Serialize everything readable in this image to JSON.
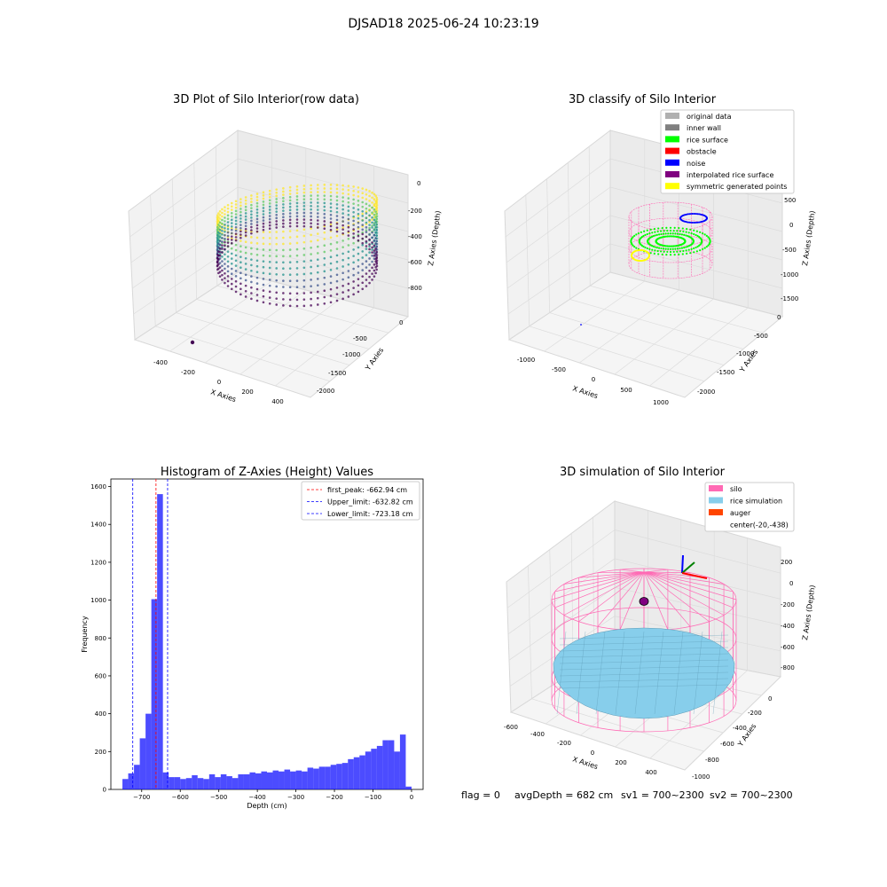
{
  "figure": {
    "suptitle": "DJSAD18 2025-06-24 10:23:19",
    "footer": {
      "flag": "flag = 0",
      "avg_depth": "avgDepth = 682 cm",
      "sv1": "sv1 = 700~2300",
      "sv2": "sv2 = 700~2300"
    }
  },
  "plot1": {
    "title": "3D Plot of Silo Interior(row data)",
    "xlabel": "X Axies",
    "ylabel": "Y Axies",
    "zlabel": "Z Axies (Depth)",
    "xticks": [
      "-400",
      "-200",
      "0",
      "200",
      "400"
    ],
    "yticks": [
      "0",
      "-500",
      "-1000",
      "-1500",
      "-2000"
    ],
    "zticks": [
      "0",
      "-200",
      "-400",
      "-600",
      "-800"
    ]
  },
  "plot2": {
    "title": "3D classify of Silo Interior",
    "xlabel": "X Axies",
    "ylabel": "Y Axies",
    "zlabel": "Z Axies (Depth)",
    "xticks": [
      "-1000",
      "-500",
      "0",
      "500",
      "1000"
    ],
    "yticks": [
      "0",
      "-500",
      "-1000",
      "-1500",
      "-2000"
    ],
    "zticks": [
      "500",
      "0",
      "-500",
      "-1000",
      "-1500"
    ],
    "legend": [
      {
        "label": "original data",
        "color": "#b0b0b0"
      },
      {
        "label": "inner wall",
        "color": "#808080"
      },
      {
        "label": "rice surface",
        "color": "#00ff00"
      },
      {
        "label": "obstacle",
        "color": "#ff0000"
      },
      {
        "label": "noise",
        "color": "#0000ff"
      },
      {
        "label": "interpolated rice surface",
        "color": "#800080"
      },
      {
        "label": "symmetric generated points",
        "color": "#ffff00"
      }
    ]
  },
  "plot4": {
    "title": "3D simulation of Silo Interior",
    "xlabel": "X Axies",
    "ylabel": "Y Axies",
    "zlabel": "Z Axies (Depth)",
    "xticks": [
      "-600",
      "-400",
      "-200",
      "0",
      "200",
      "400"
    ],
    "yticks": [
      "0",
      "-200",
      "-400",
      "-600",
      "-800",
      "-1000"
    ],
    "zticks": [
      "200",
      "0",
      "-200",
      "-400",
      "-600",
      "-800"
    ],
    "legend": [
      {
        "label": "silo",
        "color": "#ff69b4"
      },
      {
        "label": "rice simulation",
        "color": "#87ceeb"
      },
      {
        "label": "auger",
        "color": "#ff4500"
      },
      {
        "label": "center(-20,-438)",
        "color": ""
      }
    ]
  },
  "chart_data": {
    "type": "bar",
    "title": "Histogram of Z-Axies (Height) Values",
    "xlabel": "Depth (cm)",
    "ylabel": "Frequency",
    "xlim": [
      -780,
      30
    ],
    "ylim": [
      0,
      1640
    ],
    "xticks": [
      -700,
      -600,
      -500,
      -400,
      -300,
      -200,
      -100,
      0
    ],
    "yticks": [
      0,
      200,
      400,
      600,
      800,
      1000,
      1200,
      1400,
      1600
    ],
    "bar_color": "#0000ff",
    "bins": {
      "start": -750,
      "width": 15,
      "counts": [
        55,
        85,
        130,
        270,
        400,
        1005,
        1560,
        90,
        65,
        65,
        55,
        60,
        75,
        60,
        55,
        80,
        65,
        80,
        70,
        60,
        80,
        80,
        90,
        85,
        95,
        90,
        100,
        95,
        105,
        95,
        100,
        95,
        115,
        110,
        120,
        120,
        130,
        135,
        140,
        160,
        170,
        180,
        200,
        215,
        230,
        260,
        260,
        200,
        290,
        15
      ]
    },
    "vlines": [
      {
        "x": -662.94,
        "color": "#ff0000",
        "label": "first_peak: -662.94 cm"
      },
      {
        "x": -632.82,
        "color": "#0000ff",
        "label": "Upper_limit: -632.82 cm"
      },
      {
        "x": -723.18,
        "color": "#0000ff",
        "label": "Lower_limit: -723.18 cm"
      }
    ],
    "legend_position": "upper right"
  }
}
